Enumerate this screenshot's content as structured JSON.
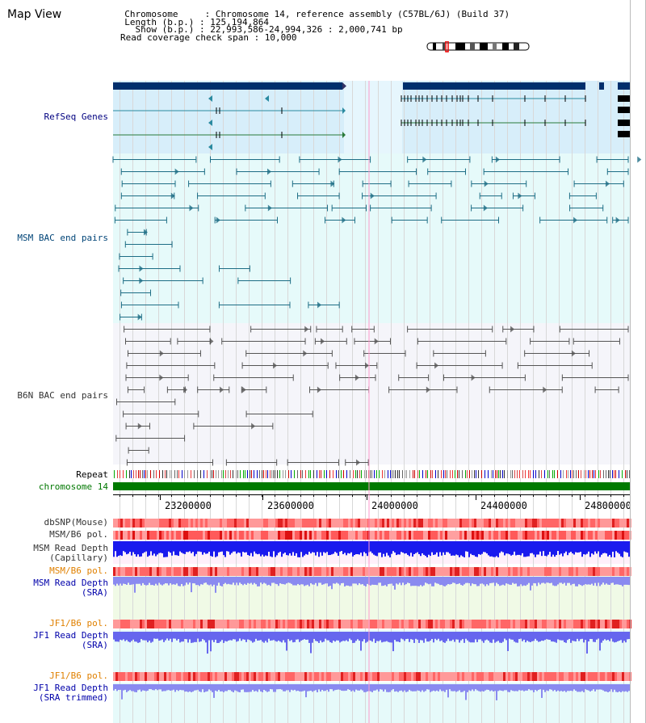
{
  "header": {
    "title": "Map View",
    "info_lines": [
      "  Chromosome     : Chromosome 14, reference assembly (C57BL/6J) (Build 37)",
      "  Length (b.p.) : 125,194,864",
      "    Show (b.p.) : 22,993,586-24,994,326 : 2,000,741 bp",
      "Read coverage check span : 10,000"
    ]
  },
  "tracks": {
    "refseq": {
      "label": "RefSeq Genes",
      "color": "#000080"
    },
    "msm_bac": {
      "label": "MSM BAC end pairs",
      "color": "#004477"
    },
    "b6n_bac": {
      "label": "B6N BAC end pairs",
      "color": "#333333"
    },
    "repeat": {
      "label": "Repeat"
    },
    "chromosome": {
      "label": "chromosome 14",
      "color": "#007700"
    },
    "dbsnp": {
      "label": "dbSNP(Mouse)",
      "color": "#333333"
    },
    "msm_b6_pol_1": {
      "label": "MSM/B6 pol.",
      "color": "#333333"
    },
    "msm_depth_cap": {
      "label": "MSM Read Depth\n(Capillary)",
      "color": "#333333"
    },
    "msm_b6_pol_2": {
      "label": "MSM/B6 pol.",
      "color": "#e08000"
    },
    "msm_depth_sra": {
      "label": "MSM Read Depth\n(SRA)",
      "color": "#0000aa"
    },
    "jf1_pol_1": {
      "label": "JF1/B6 pol.",
      "color": "#e08000"
    },
    "jf1_depth_sra": {
      "label": "JF1 Read Depth\n(SRA)",
      "color": "#0000aa"
    },
    "jf1_pol_2": {
      "label": "JF1/B6 pol.",
      "color": "#e08000"
    },
    "jf1_depth_trim": {
      "label": "JF1 Read Depth\n(SRA trimmed)",
      "color": "#0000aa"
    }
  },
  "axis": {
    "ticks": [
      "23200000",
      "23600000",
      "24000000",
      "24400000",
      "24800000"
    ]
  }
}
